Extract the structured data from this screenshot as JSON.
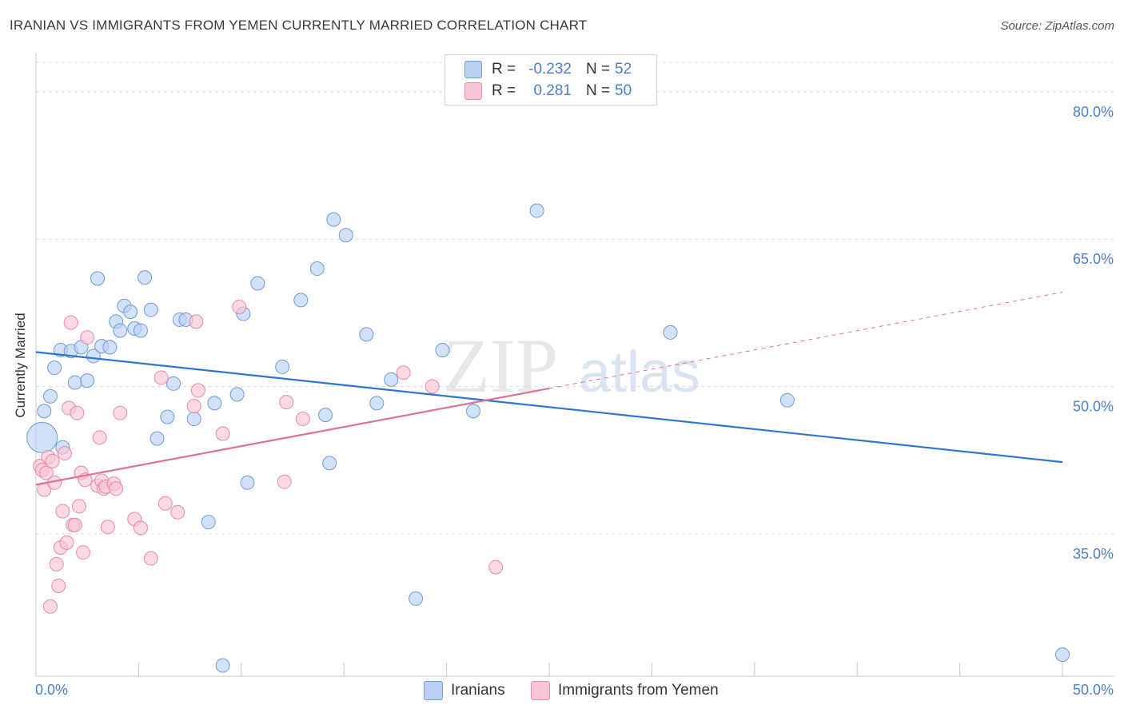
{
  "title": "IRANIAN VS IMMIGRANTS FROM YEMEN CURRENTLY MARRIED CORRELATION CHART",
  "source": "Source: ZipAtlas.com",
  "watermark": {
    "zip": "ZIP",
    "atlas": "atlas"
  },
  "legend": {
    "rows": [
      {
        "r_label": "R =",
        "r_value": "-0.232",
        "n_label": "N =",
        "n_value": "52",
        "fill": "#b9d1f3",
        "stroke": "#6f9ad8"
      },
      {
        "r_label": "R =",
        "r_value": "0.281",
        "n_label": "N =",
        "n_value": "50",
        "fill": "#f8c5d5",
        "stroke": "#e58aa8"
      }
    ]
  },
  "bottom_legend": {
    "series_a": "Iranians",
    "series_b": "Immigrants from Yemen"
  },
  "colors": {
    "blue_fill": "#b9d1f3",
    "blue_stroke": "#6f9ad8",
    "blue_line": "#2f74d0",
    "pink_fill": "#f8c5d5",
    "pink_stroke": "#e58aa8",
    "pink_line": "#e07098",
    "tick_text": "#4a7fd0",
    "grid": "#dcdcdc"
  },
  "chart_data": {
    "type": "scatter",
    "title": "IRANIAN VS IMMIGRANTS FROM YEMEN CURRENTLY MARRIED CORRELATION CHART",
    "xlabel": "",
    "ylabel": "Currently Married",
    "xlim": [
      0,
      50
    ],
    "ylim": [
      20.5,
      83
    ],
    "x_tick_labels": [
      "0.0%",
      "50.0%"
    ],
    "y_ticks": [
      35,
      50,
      65,
      80
    ],
    "y_tick_labels": [
      "35.0%",
      "50.0%",
      "65.0%",
      "80.0%"
    ],
    "grid": true,
    "legend_position": "top-center",
    "series": [
      {
        "name": "Iranians",
        "color": "#6f9ad8",
        "points": [
          [
            0.3,
            44.8
          ],
          [
            0.4,
            47.5
          ],
          [
            0.7,
            49.0
          ],
          [
            0.9,
            51.9
          ],
          [
            1.2,
            53.7
          ],
          [
            1.3,
            43.8
          ],
          [
            1.7,
            53.6
          ],
          [
            1.9,
            50.4
          ],
          [
            2.2,
            54.0
          ],
          [
            2.5,
            50.6
          ],
          [
            2.8,
            53.1
          ],
          [
            3.0,
            61.0
          ],
          [
            3.2,
            54.1
          ],
          [
            3.6,
            54.0
          ],
          [
            3.9,
            56.6
          ],
          [
            4.1,
            55.7
          ],
          [
            4.3,
            58.2
          ],
          [
            4.6,
            57.6
          ],
          [
            4.8,
            55.9
          ],
          [
            5.1,
            55.7
          ],
          [
            5.3,
            61.1
          ],
          [
            5.6,
            57.8
          ],
          [
            5.9,
            44.7
          ],
          [
            6.4,
            46.9
          ],
          [
            6.7,
            50.3
          ],
          [
            7.0,
            56.8
          ],
          [
            7.3,
            56.8
          ],
          [
            7.7,
            46.7
          ],
          [
            8.4,
            36.2
          ],
          [
            8.7,
            48.3
          ],
          [
            9.1,
            21.6
          ],
          [
            9.8,
            49.2
          ],
          [
            10.1,
            57.4
          ],
          [
            10.3,
            40.2
          ],
          [
            10.8,
            60.5
          ],
          [
            12.0,
            52.0
          ],
          [
            12.9,
            58.8
          ],
          [
            13.7,
            62.0
          ],
          [
            14.1,
            47.1
          ],
          [
            14.3,
            42.2
          ],
          [
            14.5,
            67.0
          ],
          [
            15.1,
            65.4
          ],
          [
            16.1,
            55.3
          ],
          [
            16.6,
            48.3
          ],
          [
            17.3,
            50.7
          ],
          [
            18.5,
            28.4
          ],
          [
            19.8,
            53.7
          ],
          [
            21.3,
            47.5
          ],
          [
            24.4,
            67.9
          ],
          [
            30.9,
            55.5
          ],
          [
            36.6,
            48.6
          ],
          [
            50.0,
            22.7
          ]
        ]
      },
      {
        "name": "Immigrants from Yemen",
        "color": "#e58aa8",
        "points": [
          [
            0.2,
            41.9
          ],
          [
            0.3,
            41.5
          ],
          [
            0.4,
            39.5
          ],
          [
            0.5,
            41.2
          ],
          [
            0.6,
            42.8
          ],
          [
            0.7,
            27.6
          ],
          [
            0.8,
            42.4
          ],
          [
            0.9,
            40.2
          ],
          [
            1.0,
            31.9
          ],
          [
            1.1,
            29.7
          ],
          [
            1.2,
            33.6
          ],
          [
            1.3,
            37.3
          ],
          [
            1.4,
            43.2
          ],
          [
            1.5,
            34.1
          ],
          [
            1.6,
            47.8
          ],
          [
            1.7,
            56.5
          ],
          [
            1.8,
            35.9
          ],
          [
            1.9,
            35.9
          ],
          [
            2.0,
            47.3
          ],
          [
            2.1,
            37.8
          ],
          [
            2.2,
            41.2
          ],
          [
            2.3,
            33.1
          ],
          [
            2.4,
            40.5
          ],
          [
            2.5,
            55.0
          ],
          [
            3.0,
            39.9
          ],
          [
            3.1,
            44.8
          ],
          [
            3.2,
            40.4
          ],
          [
            3.3,
            39.6
          ],
          [
            3.4,
            39.8
          ],
          [
            3.5,
            35.7
          ],
          [
            3.8,
            40.1
          ],
          [
            3.9,
            39.6
          ],
          [
            4.1,
            47.3
          ],
          [
            4.8,
            36.5
          ],
          [
            5.1,
            35.6
          ],
          [
            5.6,
            32.5
          ],
          [
            6.1,
            50.9
          ],
          [
            6.3,
            38.1
          ],
          [
            6.9,
            37.2
          ],
          [
            7.7,
            48.0
          ],
          [
            7.8,
            56.6
          ],
          [
            7.9,
            49.6
          ],
          [
            9.1,
            45.2
          ],
          [
            9.9,
            58.1
          ],
          [
            12.1,
            40.3
          ],
          [
            12.2,
            48.4
          ],
          [
            13.0,
            46.7
          ],
          [
            17.9,
            51.4
          ],
          [
            19.3,
            50.0
          ],
          [
            22.4,
            31.6
          ]
        ]
      }
    ],
    "trendlines": [
      {
        "series": "Iranians",
        "x": [
          0,
          50
        ],
        "y": [
          53.5,
          42.3
        ],
        "style": "solid"
      },
      {
        "series": "Immigrants from Yemen",
        "x": [
          0,
          25
        ],
        "y": [
          40.0,
          49.8
        ],
        "style": "solid"
      },
      {
        "series": "Immigrants from Yemen",
        "x": [
          25,
          50
        ],
        "y": [
          49.8,
          59.6
        ],
        "style": "dashed"
      }
    ]
  }
}
